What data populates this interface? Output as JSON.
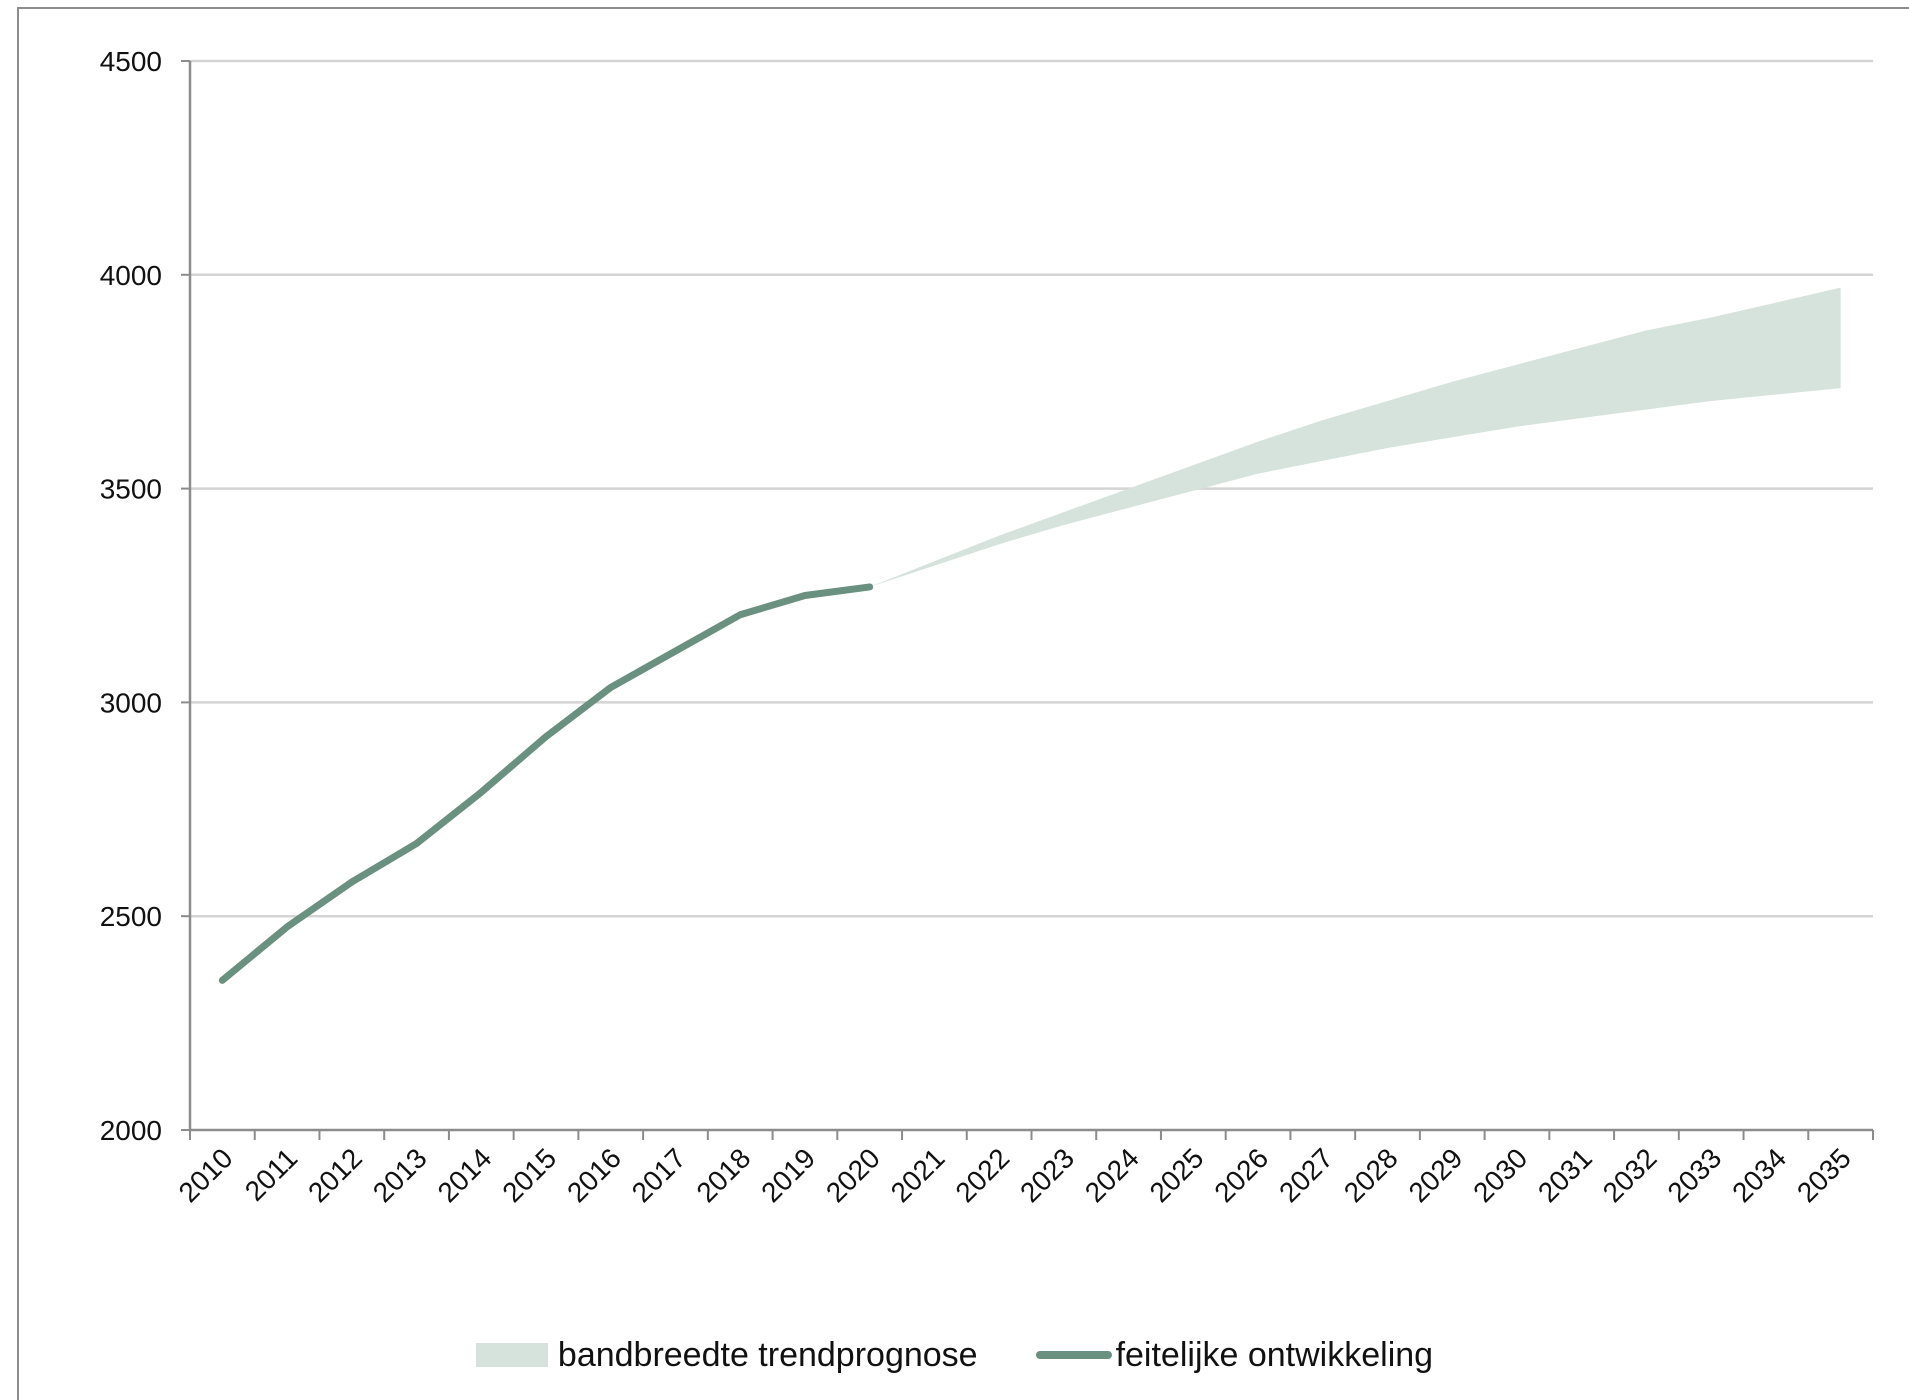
{
  "chart_data": {
    "type": "line",
    "title": "",
    "xlabel": "",
    "ylabel": "",
    "ylim": [
      2000,
      4500
    ],
    "yticks": [
      2000,
      2500,
      3000,
      3500,
      4000,
      4500
    ],
    "categories": [
      "2010",
      "2011",
      "2012",
      "2013",
      "2014",
      "2015",
      "2016",
      "2017",
      "2018",
      "2019",
      "2020",
      "2021",
      "2022",
      "2023",
      "2024",
      "2025",
      "2026",
      "2027",
      "2028",
      "2029",
      "2030",
      "2031",
      "2032",
      "2033",
      "2034",
      "2035"
    ],
    "grid": true,
    "legend_position": "bottom",
    "series": [
      {
        "name": "feitelijke ontwikkeling",
        "kind": "line",
        "color": "#6a9080",
        "x": [
          "2010",
          "2011",
          "2012",
          "2013",
          "2014",
          "2015",
          "2016",
          "2017",
          "2018",
          "2019",
          "2020"
        ],
        "values": [
          2350,
          2475,
          2580,
          2670,
          2790,
          2920,
          3035,
          3120,
          3205,
          3250,
          3270
        ]
      },
      {
        "name": "bandbreedte trendprognose",
        "kind": "band",
        "color": "#d6e2dc",
        "x": [
          "2020",
          "2021",
          "2022",
          "2023",
          "2024",
          "2025",
          "2026",
          "2027",
          "2028",
          "2029",
          "2030",
          "2031",
          "2032",
          "2033",
          "2034",
          "2035"
        ],
        "upper": [
          3270,
          3330,
          3390,
          3445,
          3500,
          3555,
          3610,
          3660,
          3705,
          3750,
          3790,
          3830,
          3870,
          3900,
          3935,
          3970
        ],
        "lower": [
          3270,
          3320,
          3370,
          3415,
          3455,
          3495,
          3535,
          3565,
          3595,
          3620,
          3645,
          3665,
          3685,
          3705,
          3720,
          3735
        ]
      }
    ]
  },
  "legend": {
    "band_label": "bandbreedte trendprognose",
    "line_label": "feitelijke ontwikkeling",
    "band_color": "#d6e2dc",
    "line_color": "#6a9080"
  }
}
